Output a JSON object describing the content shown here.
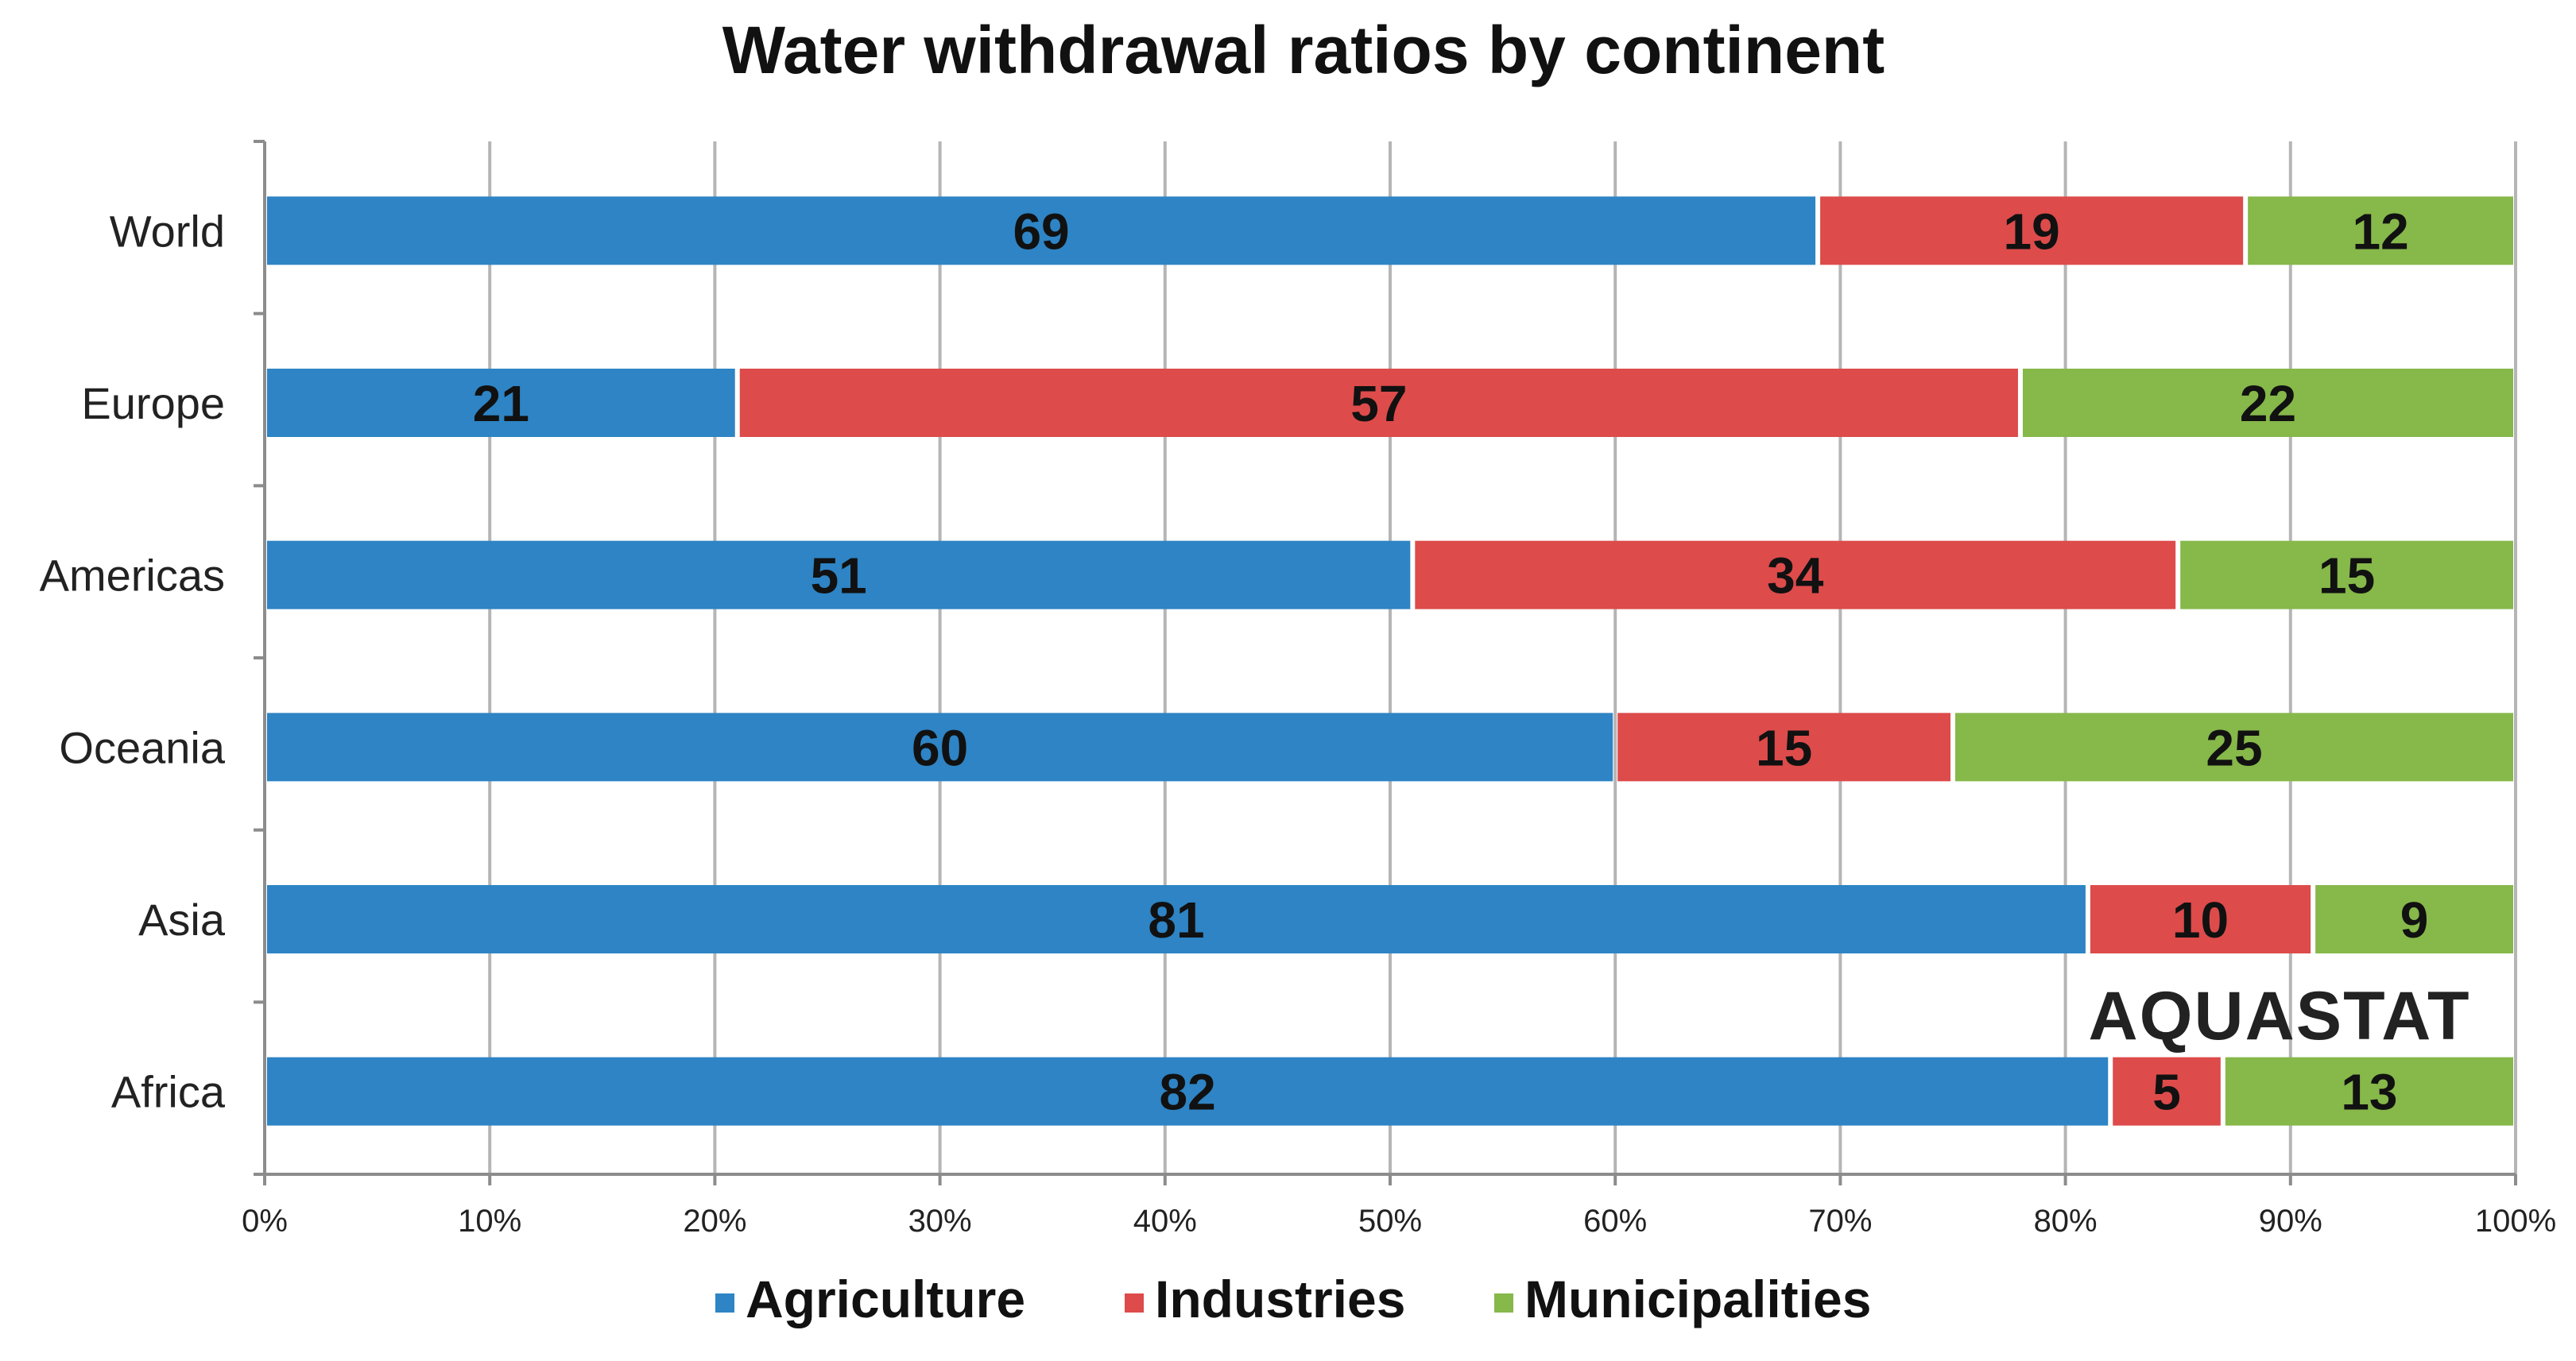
{
  "chart_data": {
    "type": "bar",
    "orientation": "horizontal",
    "stacked": true,
    "title": "Water withdrawal ratios by continent",
    "categories": [
      "World",
      "Europe",
      "Americas",
      "Oceania",
      "Asia",
      "Africa"
    ],
    "series": [
      {
        "name": "Agriculture",
        "color": "#2e84c4",
        "values": [
          69,
          21,
          51,
          60,
          81,
          82
        ]
      },
      {
        "name": "Industries",
        "color": "#dd4b4b",
        "values": [
          19,
          57,
          34,
          15,
          10,
          5
        ]
      },
      {
        "name": "Municipalities",
        "color": "#86b84a",
        "values": [
          12,
          22,
          15,
          25,
          9,
          13
        ]
      }
    ],
    "xlim": [
      0,
      100
    ],
    "xticks": [
      "0%",
      "10%",
      "20%",
      "30%",
      "40%",
      "50%",
      "60%",
      "70%",
      "80%",
      "90%",
      "100%"
    ],
    "xlabel": "",
    "ylabel": "",
    "grid": "vertical",
    "legend_position": "bottom",
    "watermark": "AQUASTAT"
  },
  "colors": {
    "grid": "#b5b5b5",
    "axis": "#8c8c8c"
  }
}
